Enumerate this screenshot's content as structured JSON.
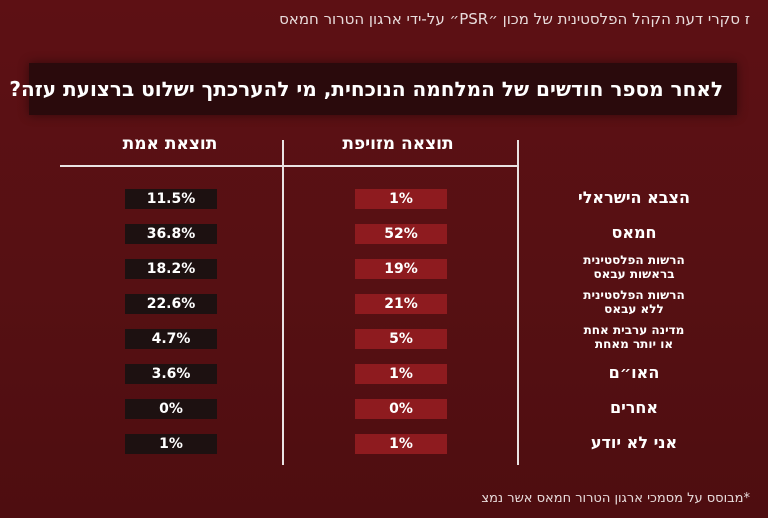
{
  "header": {
    "caption": "ז סקרי דעת הקהל הפלסטינית של מכון ״PSR״ על-ידי ארגון הטרור חמאס"
  },
  "question": "לאחר מספר חודשים של המלחמה הנוכחית, מי להערכתך ישלוט ברצועת עזה?",
  "footnote": "*מבוסס על מסמכי ארגון הטרור חמאס אשר נמצ",
  "colors": {
    "background": "#5a0f12",
    "fake_cell": "#8e1b1f",
    "real_cell": "#1d1111",
    "question_bar": "#2a0a0c",
    "lines": "#e9e2e2"
  },
  "chart_data": {
    "type": "table",
    "title": "לאחר מספר חודשים של המלחמה הנוכחית, מי להערכתך ישלוט ברצועת עזה?",
    "columns": [
      "תוצאה מזויפת",
      "תוצאת אמת"
    ],
    "rows": [
      {
        "label_lines": [
          "הצבא הישראלי"
        ],
        "fake": "1%",
        "real": "11.5%"
      },
      {
        "label_lines": [
          "חמאס"
        ],
        "fake": "52%",
        "real": "36.8%"
      },
      {
        "label_lines": [
          "הרשות הפלסטינית",
          "בראשות עבאס"
        ],
        "fake": "19%",
        "real": "18.2%"
      },
      {
        "label_lines": [
          "הרשות הפלסטינית",
          "ללא עבאס"
        ],
        "fake": "21%",
        "real": "22.6%"
      },
      {
        "label_lines": [
          "מדינה ערבית אחת",
          "או יותר מאחת"
        ],
        "fake": "5%",
        "real": "4.7%"
      },
      {
        "label_lines": [
          "האו״ם"
        ],
        "fake": "1%",
        "real": "3.6%"
      },
      {
        "label_lines": [
          "אחרים"
        ],
        "fake": "0%",
        "real": "0%"
      },
      {
        "label_lines": [
          "אני לא יודע"
        ],
        "fake": "1%",
        "real": "1%"
      }
    ]
  }
}
